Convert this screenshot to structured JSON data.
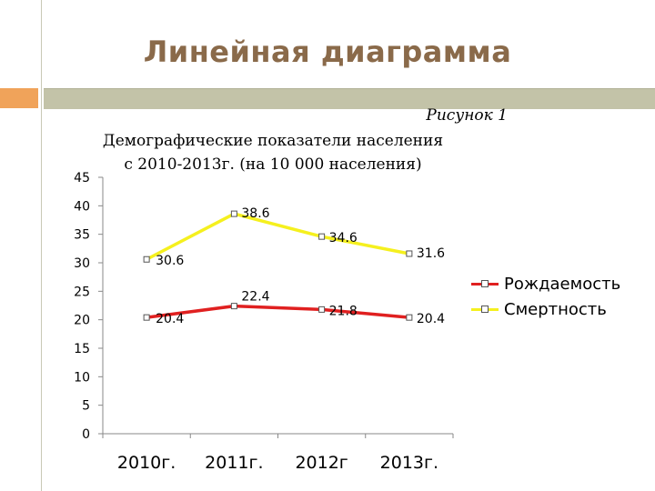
{
  "slide": {
    "title": "Линейная диаграмма"
  },
  "chart_data": {
    "type": "line",
    "figure_label": "Рисунок 1",
    "title_lines": [
      "Демографические показатели населения",
      "с 2010-2013г. (на 10 000 населения)"
    ],
    "categories": [
      "2010г.",
      "2011г.",
      "2012г",
      "2013г."
    ],
    "yticks": [
      0,
      5,
      10,
      15,
      20,
      25,
      30,
      35,
      40,
      45
    ],
    "ylim": [
      0,
      45
    ],
    "series": [
      {
        "name": "Рождаемость",
        "values": [
          20.4,
          22.4,
          21.8,
          20.4
        ],
        "labels": [
          "20.4",
          "22.4",
          "21.8",
          "20.4"
        ],
        "color": "#e02020"
      },
      {
        "name": "Смертность",
        "values": [
          30.6,
          38.6,
          34.6,
          31.6
        ],
        "labels": [
          "30.6",
          "38.6",
          "34.6",
          "31.6"
        ],
        "color": "#f5f01e"
      }
    ],
    "legend_position": "right",
    "grid": false
  }
}
